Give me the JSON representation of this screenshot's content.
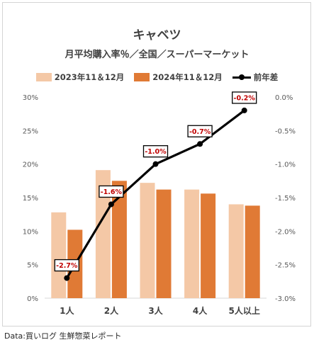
{
  "chart_data": {
    "type": "bar",
    "title": "キャベツ",
    "subtitle": "月平均購入率％／全国／スーパーマーケット",
    "categories": [
      "1人",
      "2人",
      "3人",
      "4人",
      "5人以上"
    ],
    "series": [
      {
        "name": "2023年11＆12月",
        "type": "bar",
        "axis": "left",
        "color": "#f4c8a6",
        "values": [
          12.8,
          19.1,
          17.2,
          16.2,
          14.0
        ]
      },
      {
        "name": "2024年11＆12月",
        "type": "bar",
        "axis": "left",
        "color": "#e07a35",
        "values": [
          10.2,
          17.5,
          16.2,
          15.6,
          13.8
        ]
      },
      {
        "name": "前年差",
        "type": "line",
        "axis": "right",
        "color": "#000000",
        "values": [
          -2.7,
          -1.6,
          -1.0,
          -0.7,
          -0.2
        ],
        "labels": [
          "-2.7%",
          "-1.6%",
          "-1.0%",
          "-0.7%",
          "-0.2%"
        ]
      }
    ],
    "y_left": {
      "min": 0,
      "max": 30,
      "step": 5,
      "tick_labels": [
        "0%",
        "5%",
        "10%",
        "15%",
        "20%",
        "25%",
        "30%"
      ]
    },
    "y_right": {
      "min": -3.0,
      "max": 0.0,
      "step": 0.5,
      "tick_labels": [
        "-3.0%",
        "-2.5%",
        "-2.0%",
        "-1.5%",
        "-1.0%",
        "-0.5%",
        "0.0%"
      ]
    },
    "grid": false,
    "legend_position": "top"
  },
  "source": "Data:買いログ 生鮮惣菜レポート"
}
